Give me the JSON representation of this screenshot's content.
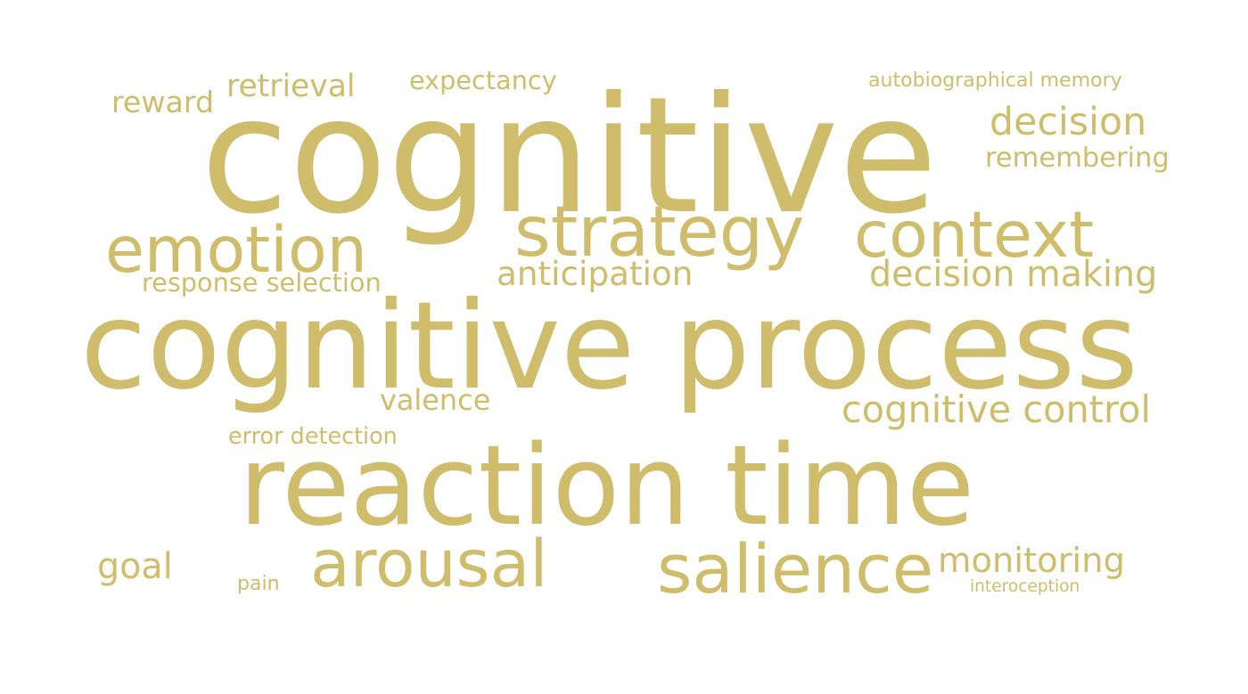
{
  "colors": {
    "background": "#ffffff",
    "word": "#cfbd6b"
  },
  "words": [
    {
      "key": "cognitive",
      "text": "cognitive"
    },
    {
      "key": "cognitive_process",
      "text": "cognitive process"
    },
    {
      "key": "reaction_time",
      "text": "reaction time"
    },
    {
      "key": "strategy",
      "text": "strategy"
    },
    {
      "key": "context",
      "text": "context"
    },
    {
      "key": "emotion",
      "text": "emotion"
    },
    {
      "key": "arousal",
      "text": "arousal"
    },
    {
      "key": "salience",
      "text": "salience"
    },
    {
      "key": "decision",
      "text": "decision"
    },
    {
      "key": "anticipation",
      "text": "anticipation"
    },
    {
      "key": "decision_making",
      "text": "decision making"
    },
    {
      "key": "cognitive_control",
      "text": "cognitive control"
    },
    {
      "key": "monitoring",
      "text": "monitoring"
    },
    {
      "key": "retrieval",
      "text": "retrieval"
    },
    {
      "key": "remembering",
      "text": "remembering"
    },
    {
      "key": "goal",
      "text": "goal"
    },
    {
      "key": "valence",
      "text": "valence"
    },
    {
      "key": "expectancy",
      "text": "expectancy"
    },
    {
      "key": "reward",
      "text": "reward"
    },
    {
      "key": "response_selection",
      "text": "response selection"
    },
    {
      "key": "error_detection",
      "text": "error detection"
    },
    {
      "key": "autobiographical_memory",
      "text": "autobiographical memory"
    },
    {
      "key": "pain",
      "text": "pain"
    },
    {
      "key": "interoception",
      "text": "interoception"
    }
  ]
}
